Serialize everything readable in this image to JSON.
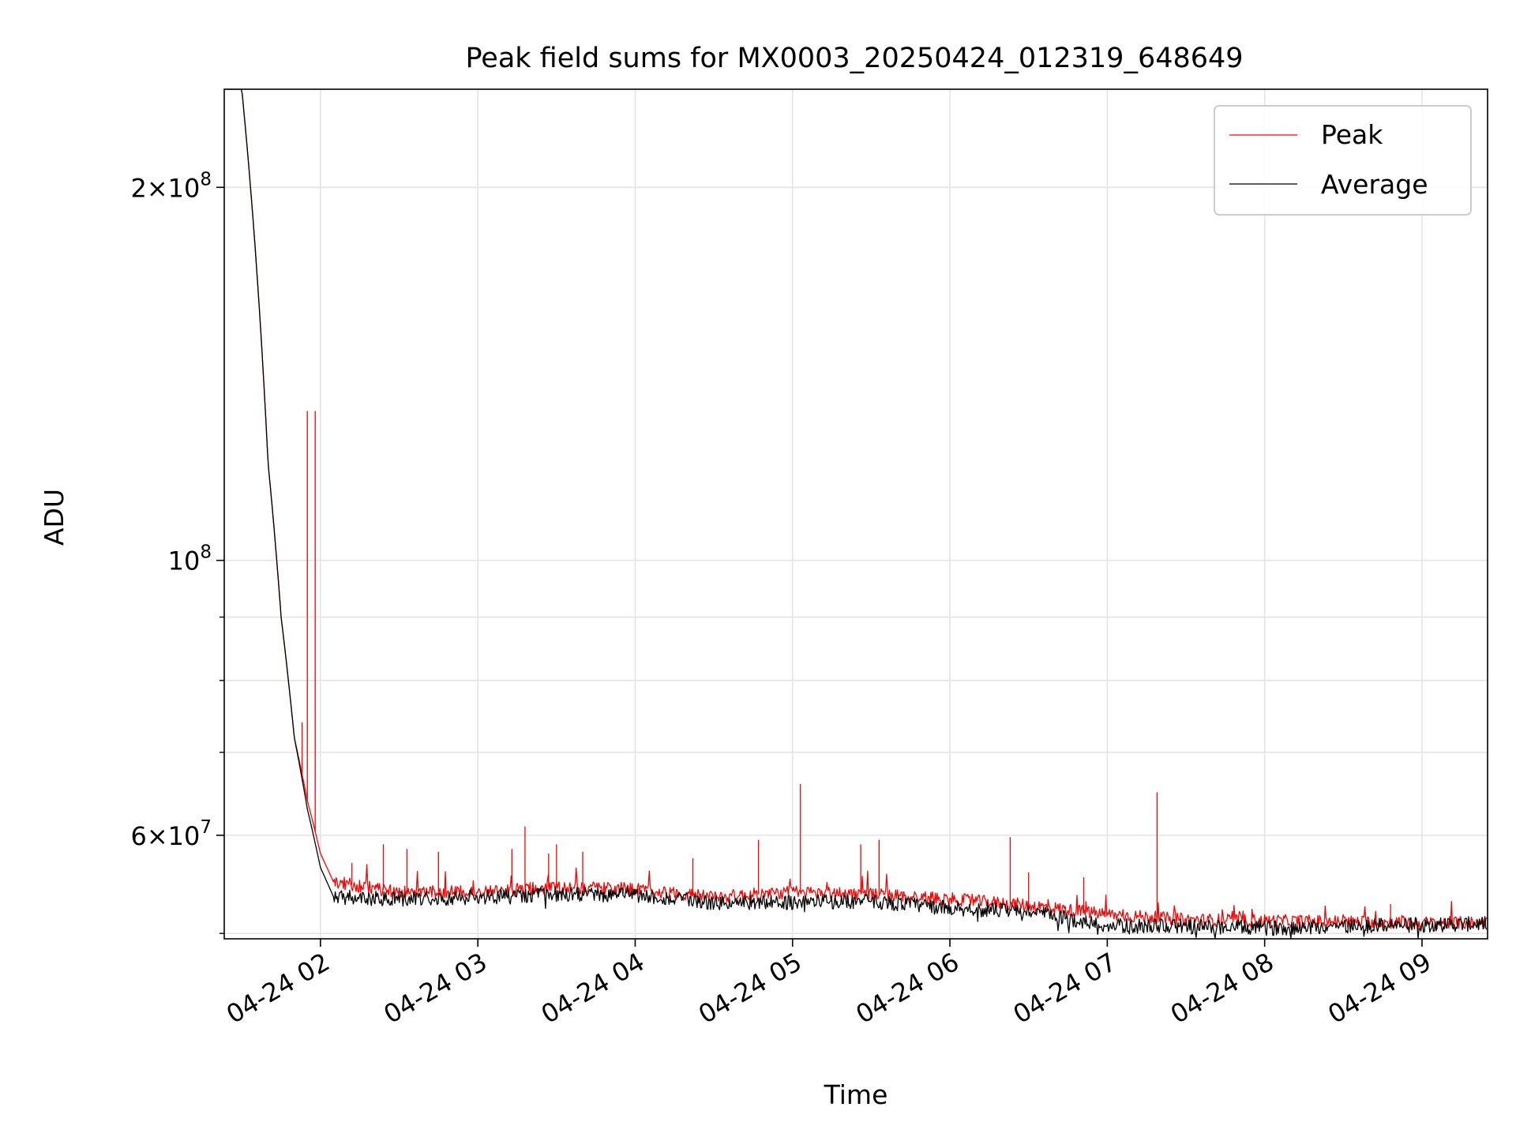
{
  "chart_data": {
    "type": "line",
    "title": "Peak field sums for MX0003_20250424_012319_648649",
    "xlabel": "Time",
    "ylabel": "ADU",
    "yscale": "log",
    "grid": true,
    "legend_position": "top-right",
    "xlim": [
      "2025-04-24T01:23:19",
      "2025-04-24T09:25:00"
    ],
    "ylim": [
      49500000,
      240000000
    ],
    "x_ticks": [
      {
        "time": "2025-04-24T02:00",
        "label": "04-24 02"
      },
      {
        "time": "2025-04-24T03:00",
        "label": "04-24 03"
      },
      {
        "time": "2025-04-24T04:00",
        "label": "04-24 04"
      },
      {
        "time": "2025-04-24T05:00",
        "label": "04-24 05"
      },
      {
        "time": "2025-04-24T06:00",
        "label": "04-24 06"
      },
      {
        "time": "2025-04-24T07:00",
        "label": "04-24 07"
      },
      {
        "time": "2025-04-24T08:00",
        "label": "04-24 08"
      },
      {
        "time": "2025-04-24T09:00",
        "label": "04-24 09"
      }
    ],
    "y_ticks_major": [
      {
        "value": 60000000,
        "mantissa": "6",
        "exponent": "7"
      },
      {
        "value": 100000000,
        "mantissa": "",
        "exponent": "8"
      },
      {
        "value": 200000000,
        "mantissa": "2",
        "exponent": "8"
      }
    ],
    "y_ticks_minor": [
      50000000,
      70000000,
      80000000,
      90000000
    ],
    "series": [
      {
        "name": "Peak",
        "color": "#ff0000",
        "points": [
          [
            "2025-04-24T01:23:19",
            240000000
          ],
          [
            "2025-04-24T01:30:00",
            240000000
          ],
          [
            "2025-04-24T01:35:00",
            180000000
          ],
          [
            "2025-04-24T01:40:00",
            120000000
          ],
          [
            "2025-04-24T01:45:00",
            90000000
          ],
          [
            "2025-04-24T01:50:00",
            72000000
          ],
          [
            "2025-04-24T01:55:00",
            64000000
          ],
          [
            "2025-04-24T02:00:00",
            58000000
          ],
          [
            "2025-04-24T02:05:00",
            55000000
          ],
          [
            "2025-04-24T02:30:00",
            54000000
          ],
          [
            "2025-04-24T03:00:00",
            54000000
          ],
          [
            "2025-04-24T03:30:00",
            54500000
          ],
          [
            "2025-04-24T04:00:00",
            54300000
          ],
          [
            "2025-04-24T04:30:00",
            53500000
          ],
          [
            "2025-04-24T05:00:00",
            54000000
          ],
          [
            "2025-04-24T05:30:00",
            53800000
          ],
          [
            "2025-04-24T06:00:00",
            53300000
          ],
          [
            "2025-04-24T06:30:00",
            52700000
          ],
          [
            "2025-04-24T07:00:00",
            51800000
          ],
          [
            "2025-04-24T07:30:00",
            51300000
          ],
          [
            "2025-04-24T08:00:00",
            51200000
          ],
          [
            "2025-04-24T08:30:00",
            51100000
          ],
          [
            "2025-04-24T09:00:00",
            51000000
          ],
          [
            "2025-04-24T09:25:00",
            51000000
          ]
        ],
        "spikes": [
          [
            "2025-04-24T01:55:00",
            132000000
          ],
          [
            "2025-04-24T01:58:00",
            132000000
          ],
          [
            "2025-04-24T01:53:00",
            74000000
          ],
          [
            "2025-04-24T02:12:00",
            57000000
          ],
          [
            "2025-04-24T02:24:00",
            59000000
          ],
          [
            "2025-04-24T02:33:00",
            58500000
          ],
          [
            "2025-04-24T02:45:00",
            58200000
          ],
          [
            "2025-04-24T03:13:00",
            58500000
          ],
          [
            "2025-04-24T03:18:00",
            61000000
          ],
          [
            "2025-04-24T03:27:00",
            58000000
          ],
          [
            "2025-04-24T03:30:00",
            59000000
          ],
          [
            "2025-04-24T03:40:00",
            58200000
          ],
          [
            "2025-04-24T04:22:00",
            57500000
          ],
          [
            "2025-04-24T04:47:00",
            59500000
          ],
          [
            "2025-04-24T05:03:00",
            66000000
          ],
          [
            "2025-04-24T05:26:00",
            59000000
          ],
          [
            "2025-04-24T05:33:00",
            59500000
          ],
          [
            "2025-04-24T06:23:00",
            59800000
          ],
          [
            "2025-04-24T06:30:00",
            56000000
          ],
          [
            "2025-04-24T06:51:00",
            55500000
          ],
          [
            "2025-04-24T07:19:00",
            65000000
          ],
          [
            "2025-04-24T08:48:00",
            52800000
          ]
        ]
      },
      {
        "name": "Average",
        "color": "#000000",
        "points": [
          [
            "2025-04-24T01:23:19",
            240000000
          ],
          [
            "2025-04-24T01:30:00",
            240000000
          ],
          [
            "2025-04-24T01:35:00",
            180000000
          ],
          [
            "2025-04-24T01:40:00",
            120000000
          ],
          [
            "2025-04-24T01:45:00",
            90000000
          ],
          [
            "2025-04-24T01:50:00",
            72000000
          ],
          [
            "2025-04-24T01:55:00",
            63000000
          ],
          [
            "2025-04-24T02:00:00",
            56500000
          ],
          [
            "2025-04-24T02:05:00",
            53500000
          ],
          [
            "2025-04-24T02:30:00",
            53300000
          ],
          [
            "2025-04-24T03:00:00",
            53500000
          ],
          [
            "2025-04-24T03:30:00",
            53800000
          ],
          [
            "2025-04-24T04:00:00",
            53700000
          ],
          [
            "2025-04-24T04:30:00",
            52900000
          ],
          [
            "2025-04-24T05:00:00",
            53000000
          ],
          [
            "2025-04-24T05:30:00",
            53100000
          ],
          [
            "2025-04-24T06:00:00",
            52400000
          ],
          [
            "2025-04-24T06:30:00",
            52100000
          ],
          [
            "2025-04-24T07:00:00",
            50700000
          ],
          [
            "2025-04-24T07:30:00",
            50700000
          ],
          [
            "2025-04-24T08:00:00",
            50500000
          ],
          [
            "2025-04-24T08:30:00",
            50700000
          ],
          [
            "2025-04-24T09:00:00",
            50800000
          ],
          [
            "2025-04-24T09:25:00",
            50900000
          ]
        ]
      }
    ]
  }
}
